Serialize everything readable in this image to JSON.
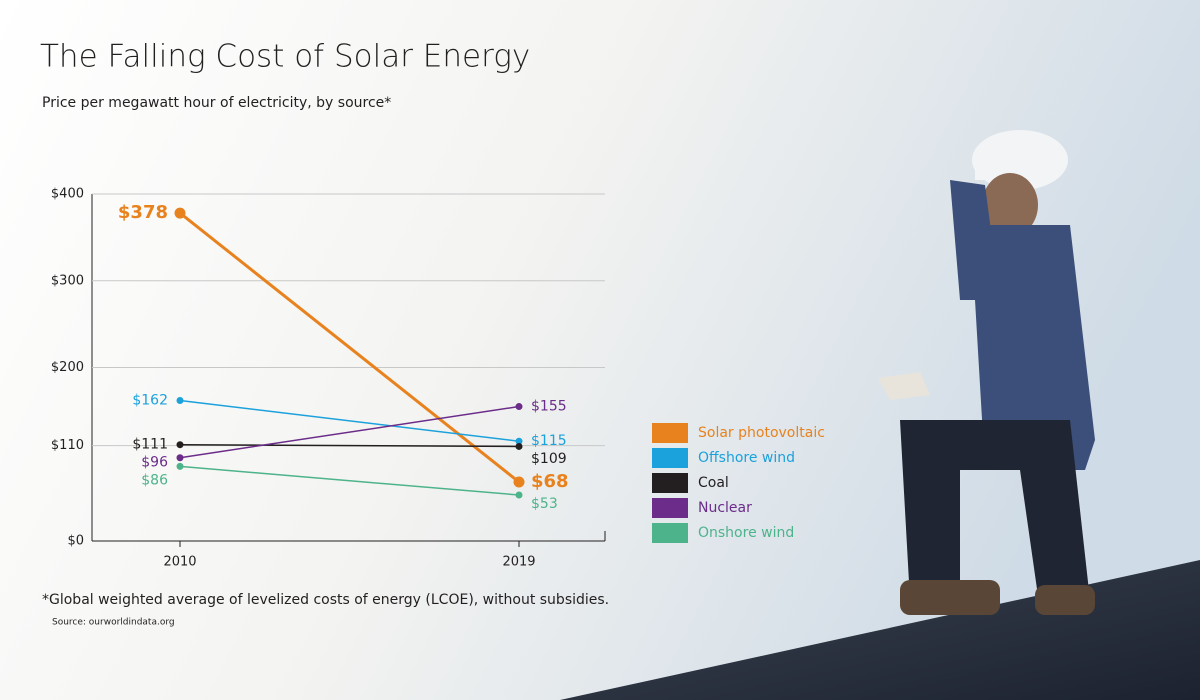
{
  "chart_data": {
    "type": "line",
    "title": "The Falling Cost of Solar Energy",
    "subtitle": "Price per megawatt hour of electricity, by source*",
    "footnote": "*Global weighted average of levelized costs of energy (LCOE), without subsidies.",
    "source": "Source: ourworldindata.org",
    "categories": [
      "2010",
      "2019"
    ],
    "ylim": [
      0,
      400
    ],
    "yticks": [
      {
        "value": 0,
        "label": "$0"
      },
      {
        "value": 110,
        "label": "$110"
      },
      {
        "value": 200,
        "label": "$200"
      },
      {
        "value": 300,
        "label": "$300"
      },
      {
        "value": 400,
        "label": "$400"
      }
    ],
    "grid": true,
    "series": [
      {
        "name": "Solar photovoltaic",
        "color": "#e8821e",
        "values": [
          378,
          68
        ],
        "value_labels": [
          "$378",
          "$68"
        ]
      },
      {
        "name": "Offshore wind",
        "color": "#1ba1dc",
        "values": [
          162,
          115
        ],
        "value_labels": [
          "$162",
          "$115"
        ]
      },
      {
        "name": "Coal",
        "color": "#231f20",
        "values": [
          111,
          109
        ],
        "value_labels": [
          "$111",
          "$109"
        ]
      },
      {
        "name": "Nuclear",
        "color": "#6b2c8a",
        "values": [
          96,
          155
        ],
        "value_labels": [
          "$96",
          "$155"
        ]
      },
      {
        "name": "Onshore wind",
        "color": "#4db38a",
        "values": [
          86,
          53
        ],
        "value_labels": [
          "$86",
          "$53"
        ]
      }
    ]
  }
}
